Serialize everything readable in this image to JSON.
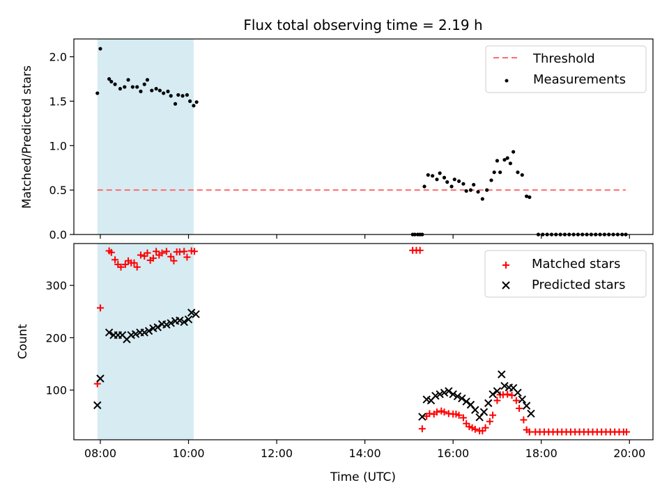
{
  "figure": {
    "title": "Flux total observing time = 2.19 h",
    "shaded_interval": {
      "start": "07:56",
      "end": "10:07",
      "color": "#add8e6"
    }
  },
  "chart_data": [
    {
      "type": "scatter",
      "ylabel": "Matched/Predicted stars",
      "ylim": [
        0,
        2.2
      ],
      "y_ticks": [
        "0.0",
        "0.5",
        "1.0",
        "1.5",
        "2.0"
      ],
      "legend_position": "top-right",
      "threshold": {
        "name": "Threshold",
        "value": 0.5,
        "x_start": "07:56",
        "x_end": "19:55",
        "color": "#ff6b6b",
        "style": "dashed"
      },
      "series": [
        {
          "name": "Measurements",
          "color": "#000000",
          "points": [
            [
              "07:56",
              1.59
            ],
            [
              "08:00",
              2.09
            ],
            [
              "08:12",
              1.75
            ],
            [
              "08:15",
              1.72
            ],
            [
              "08:20",
              1.69
            ],
            [
              "08:27",
              1.64
            ],
            [
              "08:33",
              1.66
            ],
            [
              "08:38",
              1.74
            ],
            [
              "08:44",
              1.66
            ],
            [
              "08:50",
              1.66
            ],
            [
              "08:55",
              1.61
            ],
            [
              "09:00",
              1.69
            ],
            [
              "09:04",
              1.74
            ],
            [
              "09:10",
              1.62
            ],
            [
              "09:16",
              1.64
            ],
            [
              "09:21",
              1.62
            ],
            [
              "09:26",
              1.59
            ],
            [
              "09:32",
              1.61
            ],
            [
              "09:36",
              1.56
            ],
            [
              "09:42",
              1.47
            ],
            [
              "09:46",
              1.57
            ],
            [
              "09:52",
              1.56
            ],
            [
              "09:58",
              1.57
            ],
            [
              "10:02",
              1.5
            ],
            [
              "10:07",
              1.45
            ],
            [
              "10:11",
              1.49
            ],
            [
              "15:05",
              0.0
            ],
            [
              "15:08",
              0.0
            ],
            [
              "15:12",
              0.0
            ],
            [
              "15:15",
              0.0
            ],
            [
              "15:18",
              0.0
            ],
            [
              "15:21",
              0.54
            ],
            [
              "15:26",
              0.67
            ],
            [
              "15:32",
              0.66
            ],
            [
              "15:38",
              0.62
            ],
            [
              "15:42",
              0.69
            ],
            [
              "15:48",
              0.64
            ],
            [
              "15:52",
              0.59
            ],
            [
              "15:58",
              0.54
            ],
            [
              "16:02",
              0.62
            ],
            [
              "16:08",
              0.6
            ],
            [
              "16:14",
              0.57
            ],
            [
              "16:18",
              0.49
            ],
            [
              "16:24",
              0.5
            ],
            [
              "16:28",
              0.56
            ],
            [
              "16:34",
              0.48
            ],
            [
              "16:40",
              0.4
            ],
            [
              "16:46",
              0.5
            ],
            [
              "16:52",
              0.61
            ],
            [
              "16:56",
              0.7
            ],
            [
              "17:00",
              0.83
            ],
            [
              "17:04",
              0.7
            ],
            [
              "17:10",
              0.84
            ],
            [
              "17:14",
              0.86
            ],
            [
              "17:18",
              0.8
            ],
            [
              "17:22",
              0.93
            ],
            [
              "17:28",
              0.7
            ],
            [
              "17:34",
              0.67
            ],
            [
              "17:40",
              0.43
            ],
            [
              "17:44",
              0.42
            ],
            [
              "17:56",
              0.0
            ],
            [
              "18:02",
              0.0
            ],
            [
              "18:08",
              0.0
            ],
            [
              "18:14",
              0.0
            ],
            [
              "18:20",
              0.0
            ],
            [
              "18:26",
              0.0
            ],
            [
              "18:32",
              0.0
            ],
            [
              "18:38",
              0.0
            ],
            [
              "18:44",
              0.0
            ],
            [
              "18:50",
              0.0
            ],
            [
              "18:56",
              0.0
            ],
            [
              "19:02",
              0.0
            ],
            [
              "19:08",
              0.0
            ],
            [
              "19:14",
              0.0
            ],
            [
              "19:20",
              0.0
            ],
            [
              "19:26",
              0.0
            ],
            [
              "19:32",
              0.0
            ],
            [
              "19:38",
              0.0
            ],
            [
              "19:44",
              0.0
            ],
            [
              "19:50",
              0.0
            ],
            [
              "19:55",
              0.0
            ]
          ]
        }
      ]
    },
    {
      "type": "scatter",
      "xlabel": "Time (UTC)",
      "ylabel": "Count",
      "xlim": [
        "07:24",
        "20:32"
      ],
      "ylim": [
        5,
        380
      ],
      "x_ticks": [
        "08:00",
        "10:00",
        "12:00",
        "14:00",
        "16:00",
        "18:00",
        "20:00"
      ],
      "y_ticks": [
        "100",
        "200",
        "300"
      ],
      "legend_position": "top-right",
      "series": [
        {
          "name": "Matched stars",
          "color": "#ff0000",
          "marker": "+",
          "points": [
            [
              "07:56",
              112
            ],
            [
              "08:00",
              257
            ],
            [
              "08:12",
              366
            ],
            [
              "08:15",
              363
            ],
            [
              "08:20",
              349
            ],
            [
              "08:24",
              340
            ],
            [
              "08:28",
              335
            ],
            [
              "08:34",
              340
            ],
            [
              "08:38",
              347
            ],
            [
              "08:42",
              343
            ],
            [
              "08:46",
              343
            ],
            [
              "08:50",
              335
            ],
            [
              "08:55",
              358
            ],
            [
              "09:00",
              356
            ],
            [
              "09:04",
              362
            ],
            [
              "09:08",
              348
            ],
            [
              "09:12",
              352
            ],
            [
              "09:16",
              365
            ],
            [
              "09:20",
              358
            ],
            [
              "09:24",
              362
            ],
            [
              "09:30",
              365
            ],
            [
              "09:36",
              355
            ],
            [
              "09:40",
              347
            ],
            [
              "09:44",
              364
            ],
            [
              "09:48",
              364
            ],
            [
              "09:54",
              365
            ],
            [
              "09:58",
              354
            ],
            [
              "10:04",
              366
            ],
            [
              "10:08",
              365
            ],
            [
              "15:05",
              367
            ],
            [
              "15:10",
              367
            ],
            [
              "15:15",
              367
            ],
            [
              "15:18",
              26
            ],
            [
              "15:24",
              50
            ],
            [
              "15:28",
              55
            ],
            [
              "15:34",
              54
            ],
            [
              "15:38",
              58
            ],
            [
              "15:44",
              60
            ],
            [
              "15:48",
              58
            ],
            [
              "15:54",
              55
            ],
            [
              "16:00",
              54
            ],
            [
              "16:04",
              54
            ],
            [
              "16:08",
              52
            ],
            [
              "16:14",
              47
            ],
            [
              "16:18",
              36
            ],
            [
              "16:22",
              30
            ],
            [
              "16:26",
              28
            ],
            [
              "16:30",
              25
            ],
            [
              "16:36",
              22
            ],
            [
              "16:40",
              22
            ],
            [
              "16:44",
              28
            ],
            [
              "16:50",
              40
            ],
            [
              "16:54",
              52
            ],
            [
              "17:00",
              80
            ],
            [
              "17:04",
              91
            ],
            [
              "17:08",
              91
            ],
            [
              "17:14",
              92
            ],
            [
              "17:20",
              90
            ],
            [
              "17:26",
              80
            ],
            [
              "17:30",
              65
            ],
            [
              "17:36",
              43
            ],
            [
              "17:40",
              24
            ],
            [
              "17:44",
              20
            ],
            [
              "17:52",
              20
            ],
            [
              "17:58",
              20
            ],
            [
              "18:04",
              20
            ],
            [
              "18:10",
              20
            ],
            [
              "18:16",
              20
            ],
            [
              "18:22",
              20
            ],
            [
              "18:28",
              20
            ],
            [
              "18:34",
              20
            ],
            [
              "18:40",
              20
            ],
            [
              "18:46",
              20
            ],
            [
              "18:52",
              20
            ],
            [
              "18:58",
              20
            ],
            [
              "19:04",
              20
            ],
            [
              "19:10",
              20
            ],
            [
              "19:16",
              20
            ],
            [
              "19:22",
              20
            ],
            [
              "19:28",
              20
            ],
            [
              "19:34",
              20
            ],
            [
              "19:40",
              20
            ],
            [
              "19:46",
              20
            ],
            [
              "19:52",
              20
            ],
            [
              "19:56",
              20
            ]
          ]
        },
        {
          "name": "Predicted stars",
          "color": "#000000",
          "marker": "x",
          "points": [
            [
              "07:56",
              71
            ],
            [
              "08:00",
              122
            ],
            [
              "08:12",
              210
            ],
            [
              "08:18",
              205
            ],
            [
              "08:24",
              205
            ],
            [
              "08:30",
              205
            ],
            [
              "08:36",
              197
            ],
            [
              "08:42",
              205
            ],
            [
              "08:48",
              207
            ],
            [
              "08:54",
              210
            ],
            [
              "09:00",
              210
            ],
            [
              "09:06",
              213
            ],
            [
              "09:12",
              218
            ],
            [
              "09:18",
              220
            ],
            [
              "09:24",
              226
            ],
            [
              "09:30",
              225
            ],
            [
              "09:36",
              228
            ],
            [
              "09:42",
              232
            ],
            [
              "09:48",
              233
            ],
            [
              "09:54",
              230
            ],
            [
              "10:00",
              235
            ],
            [
              "10:04",
              248
            ],
            [
              "10:10",
              245
            ],
            [
              "15:18",
              49
            ],
            [
              "15:24",
              82
            ],
            [
              "15:30",
              80
            ],
            [
              "15:36",
              89
            ],
            [
              "15:42",
              92
            ],
            [
              "15:48",
              95
            ],
            [
              "15:54",
              98
            ],
            [
              "16:00",
              92
            ],
            [
              "16:06",
              88
            ],
            [
              "16:12",
              84
            ],
            [
              "16:18",
              78
            ],
            [
              "16:24",
              72
            ],
            [
              "16:30",
              62
            ],
            [
              "16:36",
              48
            ],
            [
              "16:42",
              58
            ],
            [
              "16:48",
              75
            ],
            [
              "16:54",
              92
            ],
            [
              "17:00",
              98
            ],
            [
              "17:06",
              130
            ],
            [
              "17:10",
              108
            ],
            [
              "17:16",
              105
            ],
            [
              "17:22",
              104
            ],
            [
              "17:28",
              95
            ],
            [
              "17:34",
              82
            ],
            [
              "17:40",
              70
            ],
            [
              "17:46",
              55
            ]
          ]
        }
      ]
    }
  ]
}
